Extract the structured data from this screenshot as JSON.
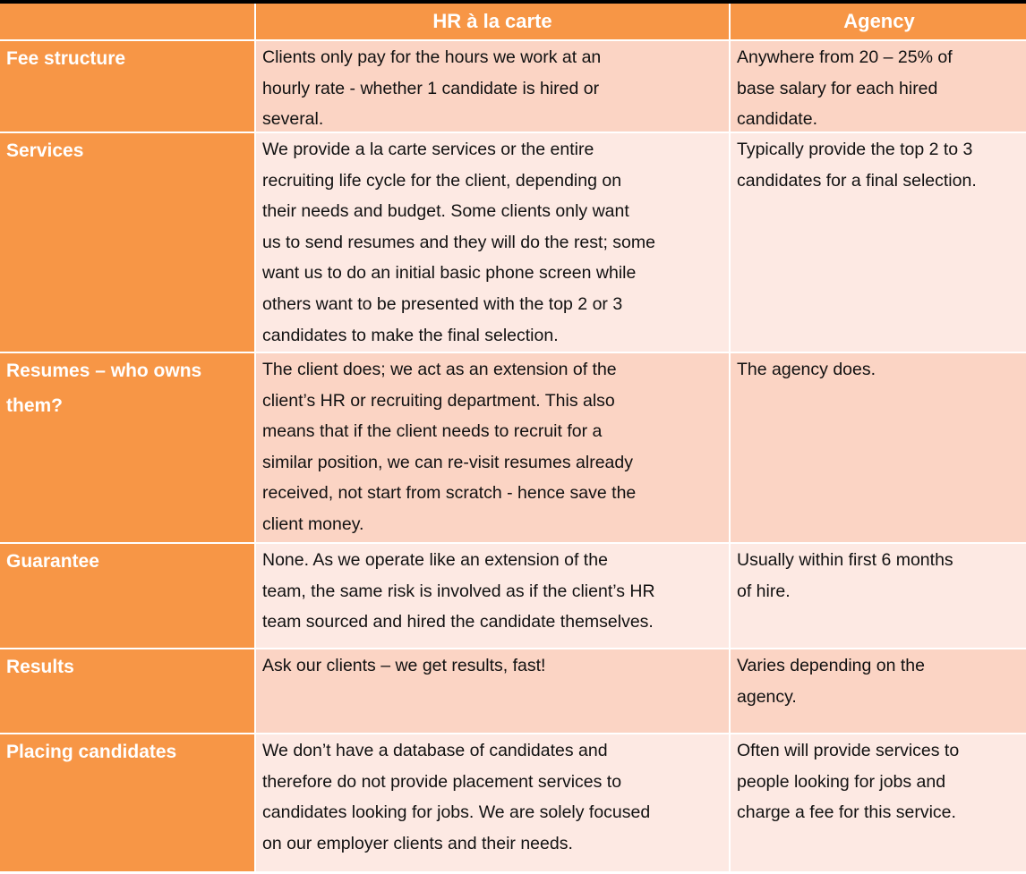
{
  "header": {
    "col1": "",
    "col2": "HR à la carte",
    "col3": "Agency"
  },
  "colors": {
    "header": "#F79646",
    "row_dark": "#FBD4C4",
    "row_light": "#FDE9E3",
    "top_bar": "#000000"
  },
  "rows": [
    {
      "label": [
        "Fee structure"
      ],
      "hr": [
        "Clients only pay for the hours we work at an",
        "hourly rate - whether 1 candidate is hired or",
        "several."
      ],
      "agency": [
        "Anywhere from 20 – 25% of",
        "base salary for each hired",
        "candidate."
      ]
    },
    {
      "label": [
        "Services"
      ],
      "hr": [
        "We provide a la carte services or the entire",
        "recruiting life cycle for the client, depending on",
        "their needs and budget.  Some clients only want",
        "us to send resumes and they will do the rest; some",
        "want us to do an initial basic phone screen while",
        "others want to be presented with the top 2 or 3",
        "candidates to make the final selection."
      ],
      "agency": [
        "Typically provide the top 2 to 3",
        "candidates for a final selection."
      ]
    },
    {
      "label": [
        "Resumes – who owns",
        "them?"
      ],
      "hr": [
        "The client does; we act as an extension of the",
        "client’s HR or recruiting department.  This also",
        "means that if the client needs to recruit for a",
        "similar position, we can re-visit resumes already",
        "received, not start from scratch - hence save the",
        "client money."
      ],
      "agency": [
        "The agency does."
      ]
    },
    {
      "label": [
        "Guarantee"
      ],
      "hr": [
        "None.  As we operate like an extension of the",
        "team, the same risk is involved as if the client’s HR",
        "team sourced and hired the candidate themselves."
      ],
      "agency": [
        "Usually within first 6 months",
        "of hire."
      ]
    },
    {
      "label": [
        "Results"
      ],
      "hr": [
        "Ask our clients – we get results, fast!"
      ],
      "agency": [
        "Varies depending on the",
        "agency."
      ]
    },
    {
      "label": [
        "Placing candidates"
      ],
      "hr": [
        "We don’t have a database of candidates and",
        "therefore do not provide placement services to",
        "candidates looking for jobs.  We are solely focused",
        "on our employer clients and their needs."
      ],
      "agency": [
        "Often will provide services to",
        "people looking for jobs and",
        "charge a fee for this service."
      ]
    }
  ]
}
